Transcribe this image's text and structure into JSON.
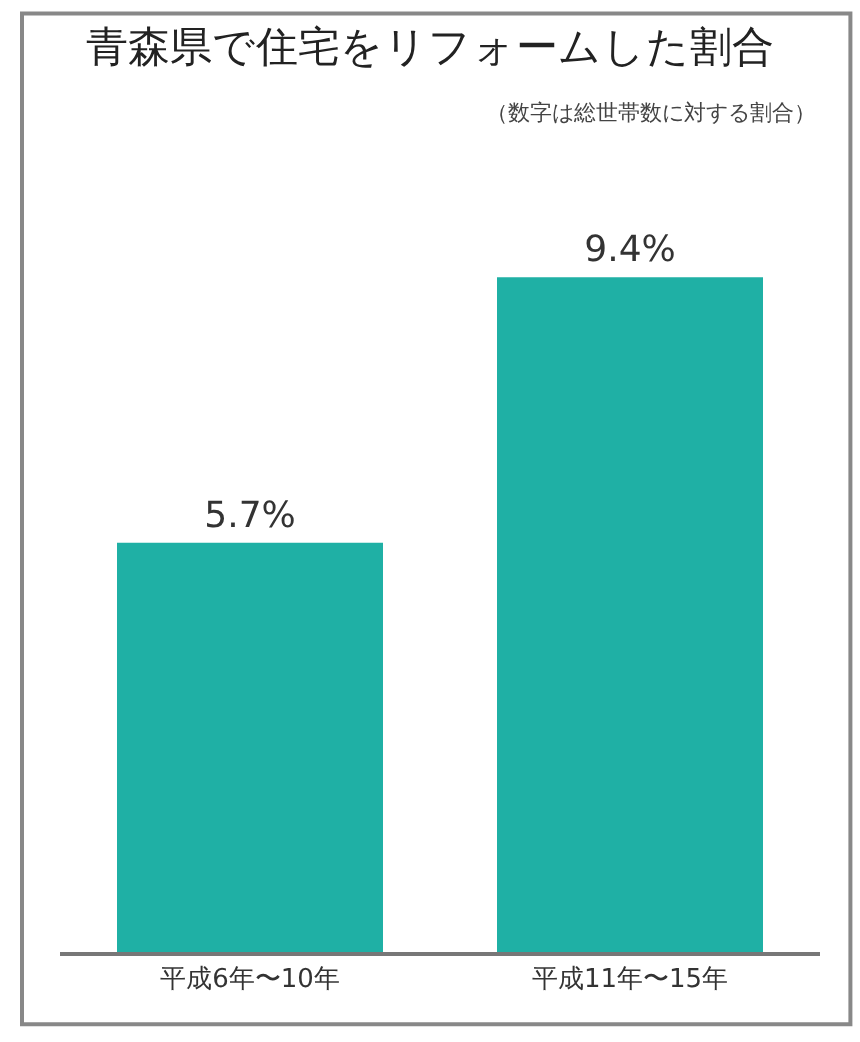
{
  "chart_data": {
    "type": "bar",
    "title": "青森県で住宅をリフォームした割合",
    "subtitle": "（数字は総世帯数に対する割合）",
    "categories": [
      "平成6年〜10年",
      "平成11年〜15年"
    ],
    "values": [
      5.7,
      9.4
    ],
    "value_labels": [
      "5.7%",
      "9.4%"
    ],
    "color": "#1fb0a5",
    "legend": false
  }
}
